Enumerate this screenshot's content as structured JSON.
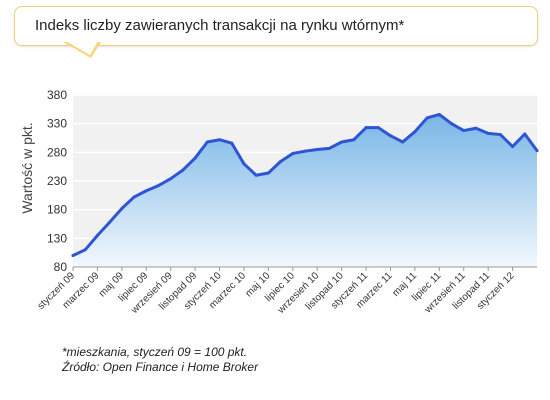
{
  "chart_data": {
    "type": "area",
    "title": "Indeks liczby zawieranych transakcji na rynku wtórnym*",
    "ylabel": "Wartość w pkt.",
    "xlabel": "",
    "ylim": [
      80,
      380
    ],
    "yticks": [
      80,
      130,
      180,
      230,
      280,
      330,
      380
    ],
    "xtick_labels": [
      "styczeń 09",
      "marzec 09",
      "maj 09",
      "lipiec 09",
      "wrzesień 09",
      "listopad 09",
      "styczeń 10",
      "marzec 10",
      "maj 10",
      "lipiec 10",
      "wrzesień 10",
      "listopad 10",
      "styczeń 11",
      "marzec 11",
      "maj 11",
      "lipiec 11",
      "wrzesień 11",
      "listopad 11",
      "styczeń 12"
    ],
    "grid": true,
    "series": [
      {
        "values": [
          100,
          110,
          135,
          158,
          182,
          202,
          213,
          222,
          234,
          249,
          270,
          298,
          302,
          296,
          260,
          240,
          244,
          264,
          278,
          282,
          285,
          287,
          298,
          302,
          323,
          323,
          309,
          298,
          316,
          340,
          346,
          330,
          318,
          322,
          313,
          311,
          290,
          312,
          283
        ]
      }
    ],
    "colors": {
      "line": "#2f55d4",
      "fill_top": "#79b6e6",
      "fill_bottom": "#f2f8fd",
      "plot_bg": "#f1f1f1",
      "grid": "#ffffff"
    }
  },
  "footnote": {
    "line1": "*mieszkania, styczeń 09 = 100 pkt.",
    "line2": "Źródło: Open Finance i Home Broker"
  }
}
